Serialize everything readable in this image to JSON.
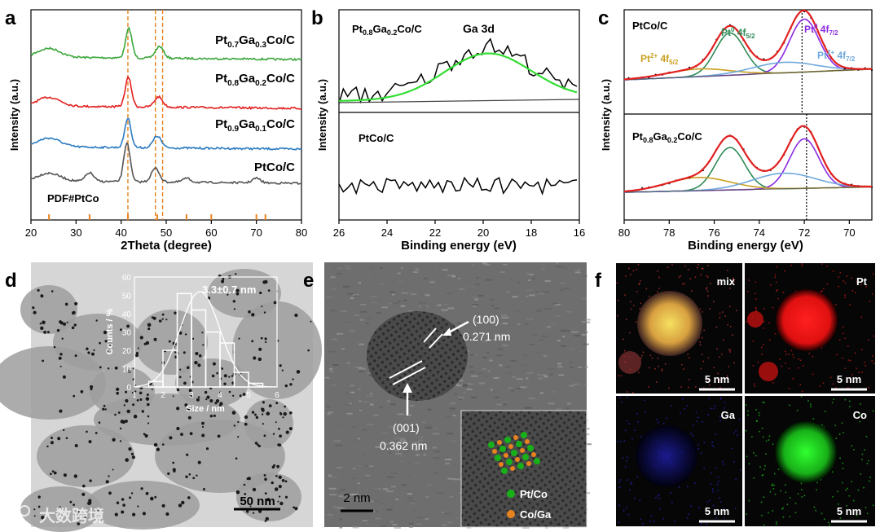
{
  "panels": {
    "a": "a",
    "b": "b",
    "c": "c",
    "d": "d",
    "e": "e",
    "f": "f"
  },
  "chart_data": [
    {
      "type": "line",
      "panel": "a",
      "xlabel": "2Theta (degree)",
      "ylabel": "Intensity (a.u.)",
      "xlim": [
        20,
        80
      ],
      "xticks": [
        "20",
        "30",
        "40",
        "50",
        "60",
        "70",
        "80"
      ],
      "reference_lines_x": [
        41.5,
        47.6,
        49.2
      ],
      "series": [
        {
          "name_main": "Pt",
          "sub1": "0.7",
          "mid": "Ga",
          "sub2": "0.3",
          "tail": "Co/C",
          "color": "#3ca63c",
          "peaks_x": [
            24,
            41.7,
            48.5
          ],
          "peaks_h": [
            0.3,
            1.0,
            0.4
          ]
        },
        {
          "name_main": "Pt",
          "sub1": "0.8",
          "mid": "Ga",
          "sub2": "0.2",
          "tail": "Co/C",
          "color": "#e22020",
          "peaks_x": [
            24,
            41.6,
            48.3
          ],
          "peaks_h": [
            0.3,
            1.0,
            0.35
          ]
        },
        {
          "name_main": "Pt",
          "sub1": "0.9",
          "mid": "Ga",
          "sub2": "0.1",
          "tail": "Co/C",
          "color": "#2b7bc0",
          "peaks_x": [
            24,
            41.5,
            48
          ],
          "peaks_h": [
            0.3,
            1.0,
            0.4
          ]
        },
        {
          "name": "PtCo/C",
          "color": "#555555",
          "peaks_x": [
            24,
            33,
            41.3,
            47.6,
            54.5,
            70
          ],
          "peaks_h": [
            0.2,
            0.22,
            1.0,
            0.35,
            0.1,
            0.12
          ]
        }
      ],
      "reference_label": "PDF#PtCo",
      "reference_sticks_x": [
        24,
        33,
        41.5,
        48,
        54.5,
        60,
        70,
        72
      ]
    },
    {
      "type": "line",
      "panel": "b",
      "xlabel": "Binding energy (eV)",
      "ylabel": "Intensity (a.u.)",
      "xlim": [
        26,
        16
      ],
      "xticks": [
        "26",
        "24",
        "22",
        "20",
        "18",
        "16"
      ],
      "top_label": {
        "main": "Pt",
        "sub1": "0.8",
        "mid": "Ga",
        "sub2": "0.2",
        "tail": "Co/C"
      },
      "top_region": "Ga 3d",
      "bottom_label": "PtCo/C",
      "fit_peak_center": 19.8
    },
    {
      "type": "line",
      "panel": "c",
      "xlabel": "Binding energy (eV)",
      "ylabel": "Intensity (a.u.)",
      "xlim": [
        80,
        69
      ],
      "xticks": [
        "80",
        "78",
        "76",
        "74",
        "72",
        "70"
      ],
      "top_label": "PtCo/C",
      "bottom_label": {
        "main": "Pt",
        "sub1": "0.8",
        "mid": "Ga",
        "sub2": "0.2",
        "tail": "Co/C"
      },
      "components": [
        {
          "name": "Pt",
          "sup": "0",
          "orb": "4f",
          "sub": "5/2",
          "color": "#2e8b57",
          "center": 75.3
        },
        {
          "name": "Pt",
          "sup": "0",
          "orb": "4f",
          "sub": "7/2",
          "color": "#8a2be2",
          "center": 72.0
        },
        {
          "name": "Pt",
          "sup": "2+",
          "orb": "4f",
          "sub": "5/2",
          "color": "#c8a020",
          "center": 76.7
        },
        {
          "name": "Pt",
          "sup": "2+",
          "orb": "4f",
          "sub": "7/2",
          "color": "#6fa8dc",
          "center": 72.9
        }
      ]
    },
    {
      "type": "bar",
      "panel": "d-inset",
      "xlabel": "Size / nm",
      "ylabel": "Counts / %",
      "xlim": [
        1,
        6
      ],
      "ylim": [
        0,
        60
      ],
      "xticks": [
        "1",
        "2",
        "3",
        "4",
        "5",
        "6"
      ],
      "yticks": [
        "0",
        "10",
        "20",
        "30",
        "40",
        "50",
        "60"
      ],
      "bins_center": [
        1.75,
        2.25,
        2.75,
        3.25,
        3.75,
        4.25,
        4.75,
        5.25
      ],
      "values": [
        3,
        20,
        51,
        42,
        30,
        24,
        8,
        2
      ],
      "annotation": "3.3±0.7 nm",
      "gauss_mean": 3.3,
      "gauss_sd": 0.7,
      "gauss_peak": 52
    }
  ],
  "panel_d": {
    "scale_bar": "50 nm"
  },
  "panel_e": {
    "label_100": "(100)",
    "d_100": "0.271 nm",
    "label_001": "(001)",
    "d_001": "0.362 nm",
    "scale_bar": "2 nm",
    "legend_pt": "Pt/Co",
    "legend_ga": "Co/Ga"
  },
  "panel_f": {
    "tiles": [
      {
        "label": "mix",
        "scale": "5 nm"
      },
      {
        "label": "Pt",
        "scale": "5 nm"
      },
      {
        "label": "Ga",
        "scale": "5 nm"
      },
      {
        "label": "Co",
        "scale": "5 nm"
      }
    ]
  },
  "watermark": "大数跨境",
  "colors": {
    "green": "#3ca63c",
    "red": "#e22020",
    "blue": "#2b7bc0",
    "gray": "#555555",
    "orange": "#e8821e"
  }
}
